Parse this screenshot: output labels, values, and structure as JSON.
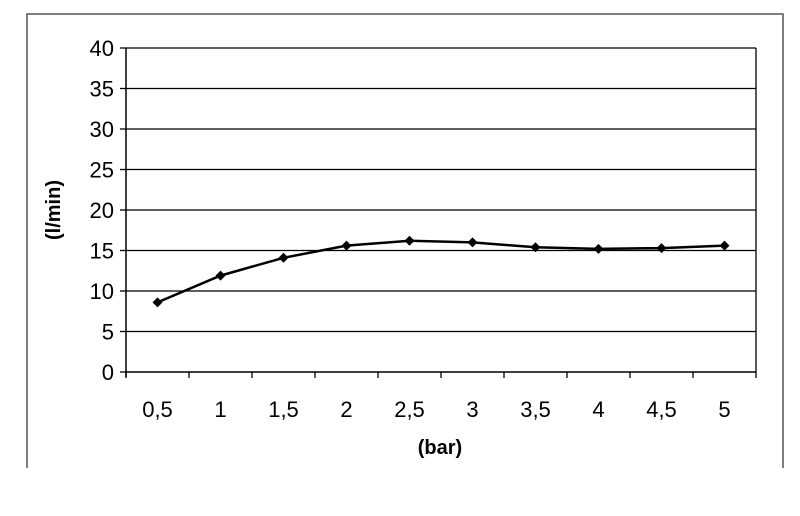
{
  "chart_data": {
    "type": "line",
    "title": "",
    "xlabel": "(bar)",
    "ylabel": "(l/min)",
    "categories": [
      "0,5",
      "1",
      "1,5",
      "2",
      "2,5",
      "3",
      "3,5",
      "4",
      "4,5",
      "5"
    ],
    "series": [
      {
        "values": [
          8.6,
          11.9,
          14.1,
          15.6,
          16.2,
          16.0,
          15.4,
          15.2,
          15.3,
          15.6
        ],
        "color": "#000000",
        "marker": "diamond"
      }
    ],
    "ylim": [
      0,
      40
    ],
    "yticks": [
      "0",
      "5",
      "10",
      "15",
      "20",
      "25",
      "30",
      "35",
      "40"
    ],
    "grid": "horizontal",
    "legend": "none"
  }
}
